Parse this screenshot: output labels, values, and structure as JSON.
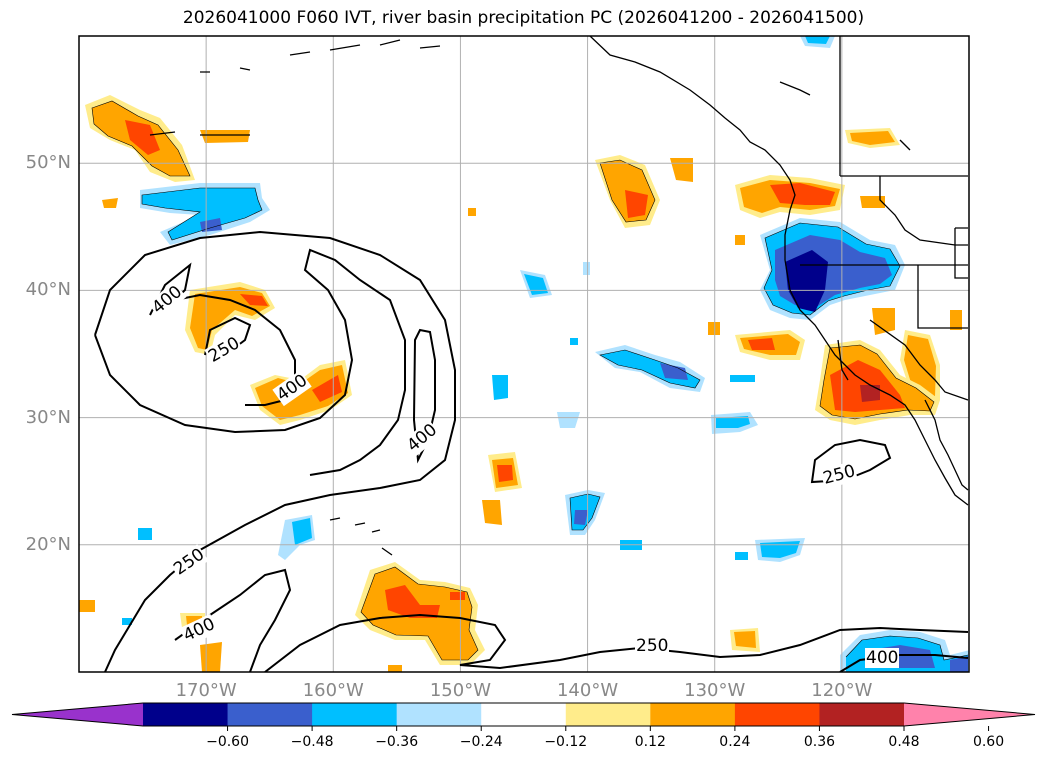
{
  "title": "2026041000 F060 IVT, river basin precipitation PC (2026041200 - 2026041500)",
  "map": {
    "lat_ticks": [
      {
        "label": "50°N",
        "lat": 50
      },
      {
        "label": "40°N",
        "lat": 40
      },
      {
        "label": "30°N",
        "lat": 30
      },
      {
        "label": "20°N",
        "lat": 20
      }
    ],
    "lon_ticks": [
      {
        "label": "170°W",
        "lon": -170
      },
      {
        "label": "160°W",
        "lon": -160
      },
      {
        "label": "150°W",
        "lon": -150
      },
      {
        "label": "140°W",
        "lon": -140
      },
      {
        "label": "130°W",
        "lon": -130
      },
      {
        "label": "120°W",
        "lon": -120
      }
    ],
    "lon_range": [
      -180,
      -110
    ],
    "lat_range": [
      10,
      60
    ],
    "grid": true,
    "ivt_contour_labels": [
      "400",
      "250",
      "400",
      "400",
      "250",
      "400",
      "250",
      "250",
      "400"
    ]
  },
  "colorbar": {
    "ticks": [
      "−0.60",
      "−0.48",
      "−0.36",
      "−0.24",
      "−0.12",
      "0.12",
      "0.24",
      "0.36",
      "0.48",
      "0.60"
    ],
    "colors": [
      "#9932cc",
      "#00008b",
      "#3a5fcd",
      "#00bfff",
      "#b0e2ff",
      "#ffffff",
      "#ffec8b",
      "#ffa500",
      "#ff4500",
      "#b22222",
      "#ff82ab"
    ]
  }
}
